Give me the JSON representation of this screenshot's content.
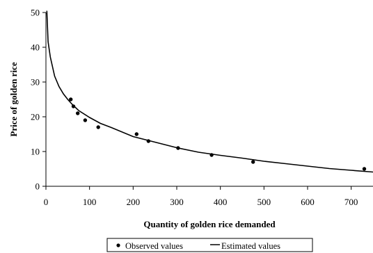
{
  "chart_data": {
    "type": "scatter",
    "xlabel": "Quantity of golden rice demanded",
    "ylabel": "Price of golden rice",
    "xlim": [
      0,
      750
    ],
    "ylim": [
      0,
      50
    ],
    "x_ticks": [
      0,
      100,
      200,
      300,
      400,
      500,
      600,
      700
    ],
    "y_ticks": [
      0,
      10,
      20,
      30,
      40,
      50
    ],
    "grid": false,
    "legend_position": "bottom",
    "series": [
      {
        "name": "Observed values",
        "kind": "points",
        "color": "#000000",
        "x": [
          57,
          63,
          73,
          90,
          120,
          208,
          235,
          303,
          380,
          475,
          730
        ],
        "y": [
          25,
          23,
          21,
          19,
          17,
          15,
          13,
          11,
          9,
          7,
          5
        ]
      },
      {
        "name": "Estimated values",
        "kind": "line",
        "color": "#000000",
        "x": [
          2,
          5,
          10,
          20,
          30,
          40,
          50,
          60,
          75,
          100,
          125,
          150,
          200,
          250,
          300,
          350,
          400,
          450,
          500,
          550,
          600,
          650,
          700,
          750
        ],
        "y": [
          50.5,
          41.6,
          37.2,
          31.7,
          28.7,
          26.6,
          25.0,
          23.6,
          21.8,
          19.8,
          18.1,
          16.9,
          14.3,
          12.7,
          11.1,
          9.8,
          8.9,
          8.1,
          7.2,
          6.5,
          5.8,
          5.1,
          4.6,
          4.1
        ]
      }
    ]
  }
}
